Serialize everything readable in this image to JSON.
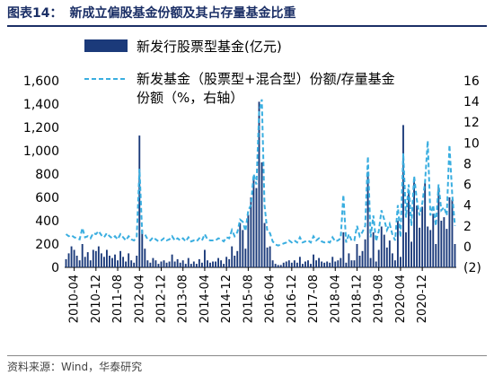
{
  "figure": {
    "title_prefix": "图表14：",
    "title": "新成立偏股基金份额及其占存量基金比重",
    "source": "资料来源：Wind，华泰研究"
  },
  "colors": {
    "bar": "#1b3a7a",
    "line": "#3aaee0",
    "title": "#1b2f66"
  },
  "chart_data": {
    "type": "bar",
    "left_axis": {
      "min": 0,
      "max": 1600,
      "ticks": [
        0,
        200,
        400,
        600,
        800,
        "1,000",
        "1,200",
        "1,400",
        "1,600"
      ]
    },
    "right_axis": {
      "min": -2,
      "max": 16,
      "ticks": [
        "(2)",
        "0",
        "2",
        "4",
        "6",
        "8",
        "10",
        "12",
        "14",
        "16"
      ]
    },
    "x_ticks": [
      "2010-04",
      "2010-12",
      "2011-08",
      "2012-04",
      "2012-12",
      "2013-08",
      "2014-04",
      "2014-12",
      "2015-08",
      "2016-04",
      "2016-12",
      "2017-08",
      "2018-04",
      "2018-12",
      "2019-08",
      "2020-04",
      "2020-12"
    ],
    "legend": [
      {
        "kind": "bar",
        "label": "新发行股票型基金(亿元)"
      },
      {
        "kind": "line",
        "label": "新发基金（股票型+混合型）份额/存量基金份额（%，右轴）"
      }
    ],
    "x_start": "2010-01",
    "bars": [
      70,
      120,
      180,
      150,
      100,
      60,
      200,
      90,
      130,
      60,
      150,
      140,
      180,
      120,
      90,
      150,
      100,
      80,
      110,
      60,
      140,
      90,
      50,
      120,
      60,
      40,
      100,
      1130,
      320,
      160,
      60,
      40,
      80,
      60,
      30,
      50,
      60,
      40,
      50,
      110,
      50,
      70,
      40,
      60,
      30,
      80,
      30,
      50,
      30,
      70,
      40,
      150,
      60,
      40,
      50,
      50,
      80,
      60,
      30,
      90,
      70,
      180,
      100,
      140,
      380,
      320,
      160,
      450,
      600,
      780,
      680,
      1420,
      900,
      380,
      170,
      180,
      60,
      30,
      20,
      20,
      40,
      50,
      60,
      40,
      60,
      40,
      90,
      30,
      50,
      60,
      30,
      110,
      60,
      80,
      50,
      40,
      50,
      40,
      90,
      50,
      60,
      80,
      300,
      40,
      120,
      60,
      60,
      200,
      100,
      140,
      240,
      820,
      80,
      300,
      50,
      150,
      350,
      280,
      170,
      230,
      120,
      60,
      400,
      90,
      1220,
      300,
      640,
      220,
      760,
      530,
      340,
      520,
      720,
      350,
      320,
      460,
      200,
      680,
      400,
      430,
      330,
      600,
      580,
      200
    ],
    "line": [
      1.2,
      1.0,
      1.1,
      0.9,
      0.8,
      0.7,
      1.8,
      0.9,
      1.0,
      0.8,
      1.3,
      1.2,
      1.5,
      1.1,
      0.9,
      1.3,
      1.0,
      0.8,
      1.0,
      0.7,
      1.2,
      0.9,
      0.6,
      1.0,
      0.7,
      0.6,
      0.9,
      7.5,
      1.3,
      1.2,
      0.7,
      0.6,
      0.9,
      0.7,
      0.5,
      0.6,
      0.8,
      0.6,
      0.7,
      1.0,
      0.6,
      0.8,
      0.6,
      0.8,
      0.5,
      0.9,
      0.5,
      0.6,
      0.5,
      0.8,
      0.6,
      1.2,
      0.7,
      0.6,
      0.6,
      0.6,
      0.8,
      0.7,
      0.5,
      0.9,
      0.8,
      1.6,
      1.0,
      1.4,
      2.6,
      2.4,
      1.5,
      3.5,
      4.0,
      7.0,
      6.0,
      13.0,
      14.2,
      4.0,
      1.5,
      1.3,
      0.5,
      0.2,
      0.1,
      0.2,
      0.3,
      0.4,
      0.6,
      0.4,
      0.6,
      0.4,
      0.9,
      0.4,
      0.5,
      0.6,
      0.4,
      1.0,
      0.6,
      0.8,
      0.5,
      0.4,
      0.5,
      0.4,
      0.9,
      0.5,
      0.6,
      0.8,
      5.0,
      0.4,
      1.2,
      0.6,
      0.6,
      2.0,
      1.0,
      1.4,
      2.0,
      8.7,
      0.9,
      3.0,
      0.5,
      1.5,
      3.5,
      2.6,
      1.6,
      2.2,
      1.2,
      0.6,
      4.0,
      0.9,
      9.0,
      2.8,
      6.0,
      2.0,
      6.8,
      4.5,
      3.0,
      4.2,
      6.2,
      10.2,
      3.0,
      4.0,
      2.0,
      6.0,
      3.5,
      3.8,
      3.0,
      9.8,
      5.0,
      2.0
    ]
  }
}
